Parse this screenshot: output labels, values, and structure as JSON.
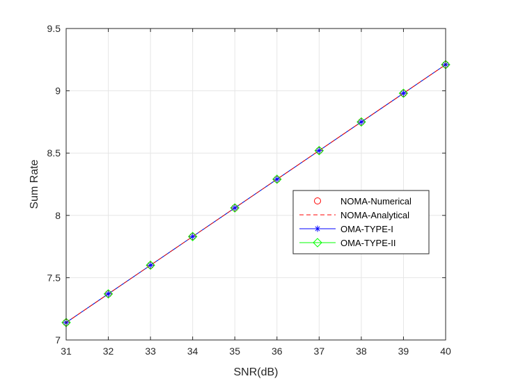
{
  "chart_data": {
    "type": "line",
    "title": "",
    "xlabel": "SNR(dB)",
    "ylabel": "Sum Rate",
    "xlim": [
      31,
      40
    ],
    "ylim": [
      7,
      9.5
    ],
    "xticks": [
      "31",
      "32",
      "33",
      "34",
      "35",
      "36",
      "37",
      "38",
      "39",
      "40"
    ],
    "yticks": [
      "7",
      "7.5",
      "8",
      "8.5",
      "9",
      "9.5"
    ],
    "grid": true,
    "legend_position": "center-right",
    "x": [
      31,
      32,
      33,
      34,
      35,
      36,
      37,
      38,
      39,
      40
    ],
    "series": [
      {
        "name": "NOMA-Numerical",
        "color": "#ff0000",
        "style": "marker-only",
        "marker": "circle",
        "values": [
          7.14,
          7.37,
          7.6,
          7.83,
          8.06,
          8.29,
          8.52,
          8.75,
          8.98,
          9.21
        ]
      },
      {
        "name": "NOMA-Analytical",
        "color": "#ff0000",
        "style": "dashed",
        "marker": "none",
        "values": [
          7.14,
          7.37,
          7.6,
          7.83,
          8.06,
          8.29,
          8.52,
          8.75,
          8.98,
          9.21
        ]
      },
      {
        "name": "OMA-TYPE-I",
        "color": "#0000ff",
        "style": "solid",
        "marker": "asterisk",
        "values": [
          7.14,
          7.37,
          7.6,
          7.83,
          8.06,
          8.29,
          8.52,
          8.75,
          8.98,
          9.21
        ]
      },
      {
        "name": "OMA-TYPE-II",
        "color": "#00ff00",
        "style": "solid",
        "marker": "diamond",
        "values": [
          7.14,
          7.37,
          7.6,
          7.83,
          8.06,
          8.29,
          8.52,
          8.75,
          8.98,
          9.21
        ]
      }
    ]
  }
}
